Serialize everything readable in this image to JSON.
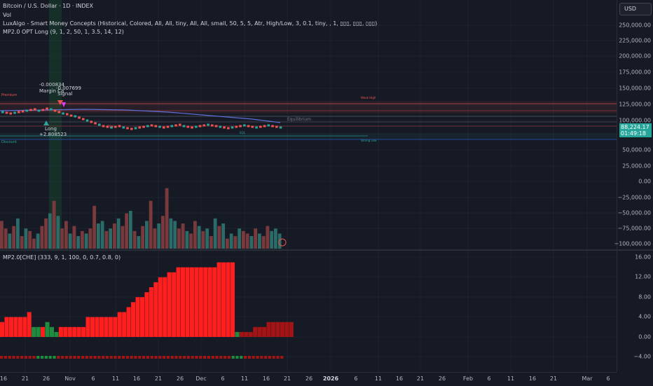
{
  "header": {
    "title": "Bitcoin / U.S. Dollar · 1D · INDEX",
    "vol_label": "Vol",
    "indicator1": "LuxAlgo - Smart Money Concepts (Historical, Colored, All, All, tiny, All, All, small, 50, 5, 5, Atr, High/Low, 3, 0.1, tiny, , 1, ▯▯▯, ▯▯▯, ▯▯▯)",
    "indicator2": "MP2.0 OPT Long (9, 1, 2, 50, 1, 3.5, 14, 12)"
  },
  "currency_button": "USD",
  "price_axis": [
    {
      "label": "250,000.00",
      "value": 250000
    },
    {
      "label": "225,000.00",
      "value": 225000
    },
    {
      "label": "200,000.00",
      "value": 200000
    },
    {
      "label": "175,000.00",
      "value": 175000
    },
    {
      "label": "150,000.00",
      "value": 150000
    },
    {
      "label": "125,000.00",
      "value": 125000
    },
    {
      "label": "100,000.00",
      "value": 100000
    },
    {
      "label": "50,000.00",
      "value": 50000
    },
    {
      "label": "25,000.00",
      "value": 25000
    },
    {
      "label": "0.00",
      "value": 0
    },
    {
      "label": "−25,000.00",
      "value": -25000
    },
    {
      "label": "−50,000.00",
      "value": -50000
    },
    {
      "label": "−75,000.00",
      "value": -75000
    },
    {
      "label": "−100,000.00",
      "value": -100000
    }
  ],
  "current_price": {
    "value": "88,224.17",
    "countdown": "01:49:18"
  },
  "chart_annotations": {
    "premium": "Premium",
    "discount": "Discount",
    "equilibrium": "Equilibrium",
    "margin": "Margin Ca",
    "signal": "Signal",
    "value_neg": "-0.000834",
    "value_neg2": "-0.007699",
    "long": "Long",
    "value_pos": "+2.808523",
    "strong_high": "Weak High",
    "strong_low": "Strong Low",
    "eqh": "EQH",
    "eql": "EQL",
    "bos": "BOS"
  },
  "indicator_pane": {
    "title": "MP2.0[CHE] (333, 9, 1, 100, 0, 0.7, 0.8, 0)",
    "axis": [
      {
        "label": "16.00",
        "value": 16
      },
      {
        "label": "12.00",
        "value": 12
      },
      {
        "label": "8.00",
        "value": 8
      },
      {
        "label": "4.00",
        "value": 4
      },
      {
        "label": "0.00",
        "value": 0
      },
      {
        "label": "−4.00",
        "value": -4
      }
    ]
  },
  "time_axis": [
    "16",
    "21",
    "26",
    "Nov",
    "6",
    "11",
    "16",
    "21",
    "26",
    "Dec",
    "6",
    "11",
    "16",
    "21",
    "26",
    "2026",
    "6",
    "11",
    "16",
    "21",
    "26",
    "Feb",
    "6",
    "11",
    "16",
    "21",
    "Mar",
    "6"
  ],
  "colors": {
    "up": "#26a69a",
    "down": "#ef5350",
    "bg": "#161a25",
    "accent_bright_red": "#ff1f1f",
    "dark_red": "#a31515",
    "green": "#1e8e3e"
  },
  "chart_data": [
    {
      "type": "bar",
      "name": "Volume",
      "values": [
        55,
        40,
        30,
        45,
        60,
        25,
        40,
        35,
        20,
        30,
        45,
        60,
        70,
        95,
        65,
        40,
        55,
        30,
        45,
        25,
        35,
        30,
        40,
        85,
        50,
        55,
        35,
        40,
        50,
        60,
        45,
        70,
        75,
        35,
        25,
        45,
        55,
        95,
        40,
        50,
        65,
        120,
        60,
        55,
        40,
        50,
        35,
        30,
        55,
        45,
        35,
        40,
        25,
        60,
        45,
        50,
        20,
        30,
        25,
        40,
        35,
        30,
        25,
        40,
        30,
        25,
        45,
        35,
        40,
        30
      ],
      "directions": [
        "d",
        "d",
        "u",
        "d",
        "u",
        "d",
        "u",
        "d",
        "d",
        "u",
        "d",
        "d",
        "u",
        "d",
        "u",
        "d",
        "d",
        "u",
        "d",
        "u",
        "d",
        "u",
        "d",
        "d",
        "u",
        "u",
        "d",
        "u",
        "d",
        "u",
        "d",
        "d",
        "u",
        "d",
        "u",
        "d",
        "u",
        "d",
        "d",
        "u",
        "d",
        "d",
        "u",
        "u",
        "d",
        "d",
        "u",
        "d",
        "d",
        "u",
        "d",
        "u",
        "d",
        "u",
        "d",
        "u",
        "d",
        "u",
        "d",
        "u",
        "d",
        "d",
        "u",
        "d",
        "u",
        "d",
        "d",
        "u",
        "u",
        "u"
      ]
    },
    {
      "type": "bar",
      "name": "MP2.0[CHE]",
      "values": [
        3,
        4,
        4,
        4,
        4,
        4,
        5,
        2,
        2,
        2,
        3,
        2,
        1,
        2,
        2,
        2,
        2,
        2,
        2,
        4,
        4,
        4,
        4,
        4,
        4,
        4,
        5,
        5,
        6,
        7,
        8,
        8,
        9,
        10,
        11,
        12,
        12,
        13,
        13,
        14,
        14,
        14,
        14,
        14,
        14,
        14,
        14,
        14,
        15,
        15,
        15,
        15,
        1,
        1,
        1,
        1,
        2,
        2,
        2,
        3,
        3,
        3,
        3,
        3,
        3
      ],
      "colors": [
        "r",
        "r",
        "r",
        "r",
        "r",
        "r",
        "r",
        "g",
        "g",
        "r",
        "g",
        "g",
        "g",
        "r",
        "r",
        "r",
        "r",
        "r",
        "r",
        "r",
        "r",
        "r",
        "r",
        "r",
        "r",
        "r",
        "r",
        "r",
        "r",
        "r",
        "r",
        "r",
        "r",
        "r",
        "r",
        "r",
        "r",
        "r",
        "r",
        "r",
        "r",
        "r",
        "r",
        "r",
        "r",
        "r",
        "r",
        "r",
        "r",
        "r",
        "r",
        "r",
        "g",
        "d",
        "d",
        "d",
        "d",
        "d",
        "d",
        "d",
        "d",
        "d",
        "d",
        "d",
        "d"
      ]
    }
  ]
}
